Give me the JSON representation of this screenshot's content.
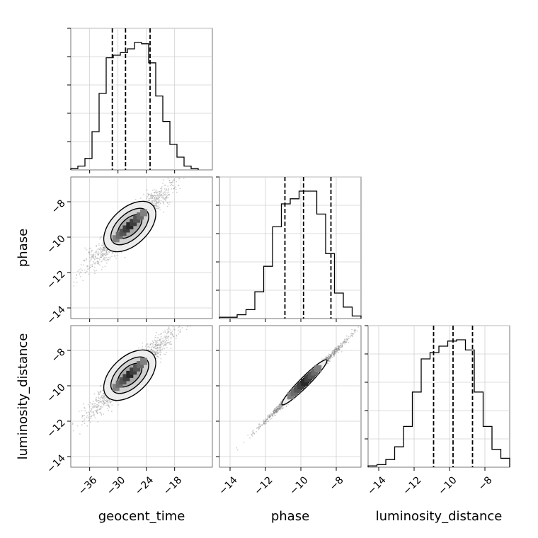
{
  "chart_data": {
    "type": "corner",
    "parameters": [
      "geocent_time",
      "phase",
      "luminosity_distance"
    ],
    "axis_labels": {
      "geocent_time": "geocent_time",
      "phase": "phase",
      "luminosity_distance": "luminosity_distance"
    },
    "ranges": {
      "geocent_time": [
        -40,
        -10
      ],
      "phase": [
        -14.6,
        -6.6
      ],
      "luminosity_distance": [
        -14.6,
        -6.6
      ]
    },
    "ticks": {
      "geocent_time": [
        -36,
        -30,
        -24,
        -18
      ],
      "phase": [
        -14,
        -12,
        -10,
        -8
      ],
      "luminosity_distance": [
        -14,
        -12,
        -10,
        -8
      ]
    },
    "grid": true,
    "quantiles": {
      "geocent_time": [
        -31.2,
        -28.4,
        -23.2
      ],
      "phase": [
        -10.9,
        -9.85,
        -8.3
      ],
      "luminosity_distance": [
        -10.9,
        -9.8,
        -8.7
      ]
    },
    "histograms": {
      "geocent_time": {
        "edges": [
          -40.0,
          -38.5,
          -37.0,
          -35.5,
          -34.0,
          -32.5,
          -31.0,
          -29.5,
          -28.0,
          -26.5,
          -25.0,
          -23.5,
          -22.0,
          -20.5,
          -19.0,
          -17.5,
          -16.0,
          -14.5,
          -13.0
        ],
        "counts": [
          1,
          3,
          9,
          30,
          60,
          88,
          90,
          92,
          95,
          100,
          99,
          84,
          58,
          38,
          20,
          10,
          3,
          1
        ]
      },
      "phase": {
        "edges": [
          -14.6,
          -14.1,
          -13.6,
          -13.1,
          -12.6,
          -12.1,
          -11.6,
          -11.1,
          -10.6,
          -10.1,
          -9.6,
          -9.1,
          -8.6,
          -8.1,
          -7.6,
          -7.1,
          -6.6
        ],
        "counts": [
          1,
          1,
          3,
          7,
          21,
          41,
          72,
          90,
          94,
          100,
          100,
          82,
          51,
          20,
          9,
          2
        ]
      },
      "luminosity_distance": {
        "edges": [
          -14.6,
          -14.1,
          -13.6,
          -13.1,
          -12.6,
          -12.1,
          -11.6,
          -11.1,
          -10.6,
          -10.1,
          -9.6,
          -9.1,
          -8.6,
          -8.1,
          -7.6,
          -7.1,
          -6.6
        ],
        "counts": [
          1,
          2,
          6,
          16,
          32,
          59,
          85,
          90,
          95,
          99,
          100,
          92,
          59,
          32,
          14,
          7
        ]
      }
    },
    "joint": {
      "phase_vs_geocent_time": {
        "slope": 0.25,
        "intercept": -2.48,
        "scatter": 0.38,
        "center": [
          -27.5,
          -9.4
        ],
        "spread": 4.6
      },
      "luminosity_distance_vs_geocent_time": {
        "slope": 0.25,
        "intercept": -2.48,
        "scatter": 0.38,
        "center": [
          -27.5,
          -9.4
        ],
        "spread": 4.6
      },
      "luminosity_distance_vs_phase": {
        "slope": 1.0,
        "intercept": 0.0,
        "scatter": 0.1,
        "center": [
          -9.8,
          -9.8
        ],
        "spread": 1.2
      }
    }
  }
}
